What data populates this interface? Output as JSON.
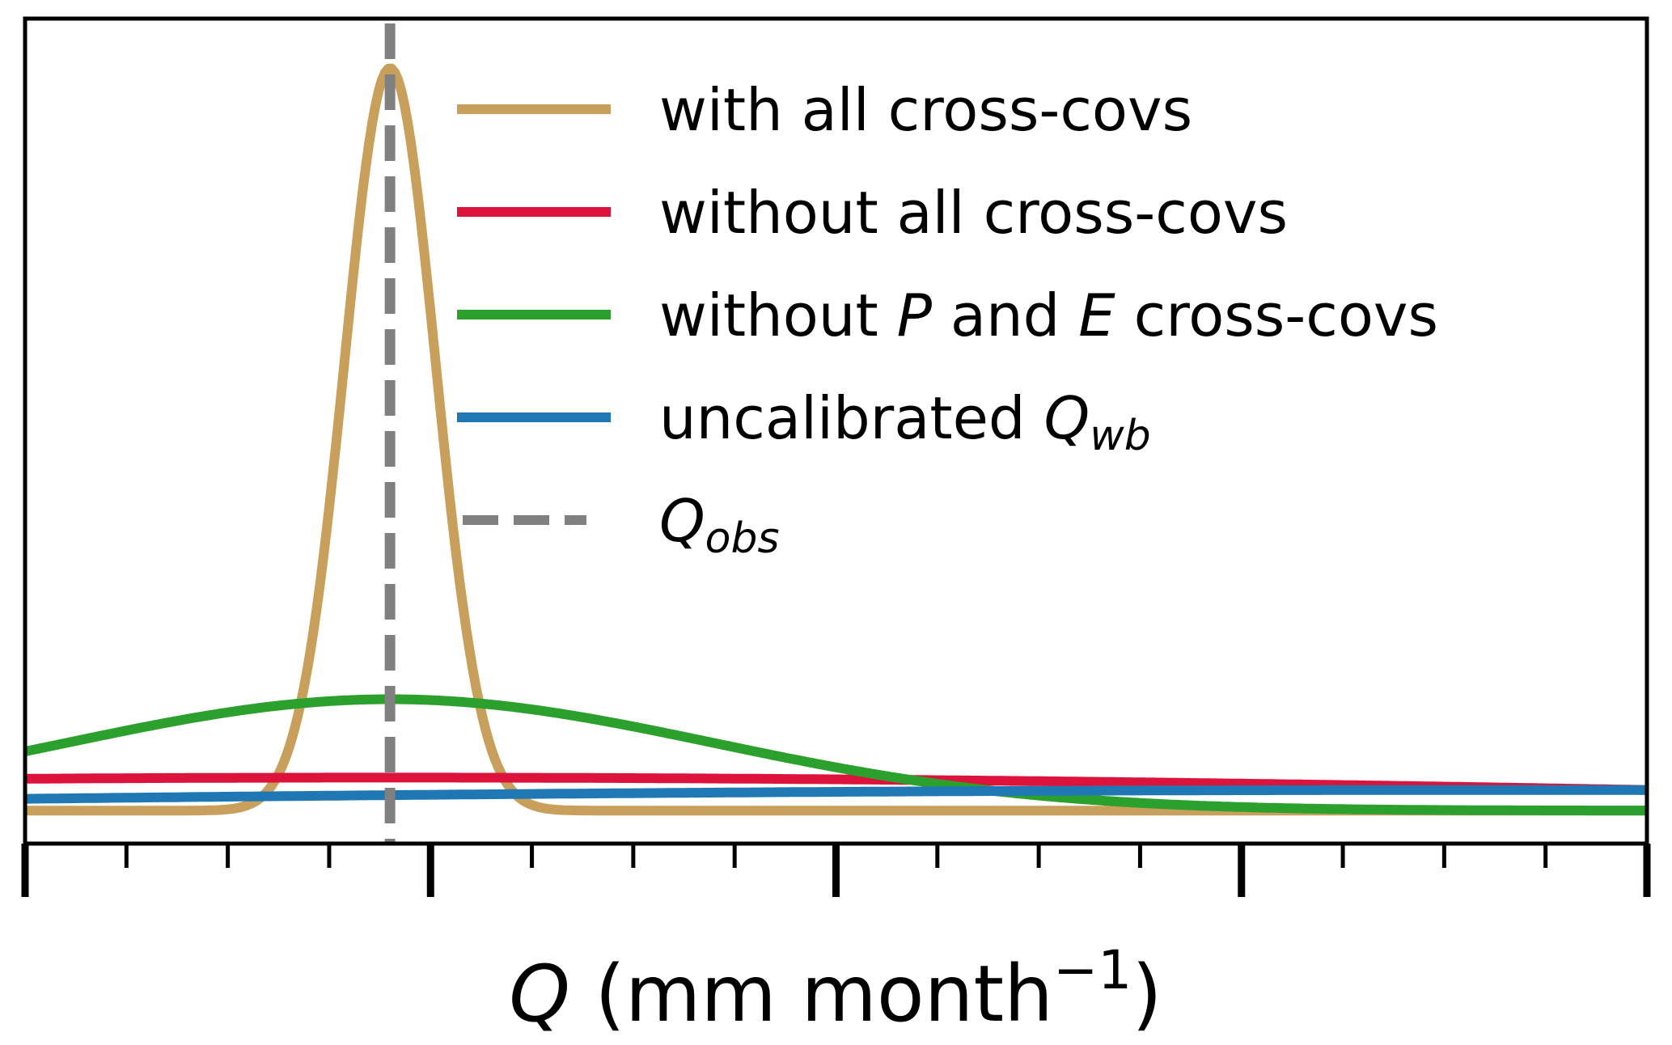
{
  "chart_data": {
    "type": "line",
    "title": "",
    "xlabel": {
      "symbol": "Q",
      "text": " (mm month",
      "superscript": "−1",
      "close": ")"
    },
    "ylabel": "",
    "x_ticks": {
      "major_count": 5,
      "minor_per_major": 4
    },
    "grid": false,
    "legend_placement": "top-right",
    "observed_marker": {
      "x": 0.225,
      "color": "#808080"
    },
    "series": [
      {
        "key": "with",
        "label": {
          "parts": [
            {
              "text": "with all cross-covs"
            }
          ]
        },
        "color": "#c8a05c",
        "style": "solid",
        "peak_x": 0.225,
        "peak_y": 0.94,
        "sigma": 0.028,
        "baseline": 0.04
      },
      {
        "key": "without_all",
        "label": {
          "parts": [
            {
              "text": "without all cross-covs"
            }
          ]
        },
        "color": "#dc143c",
        "style": "solid",
        "peak_x": 0.225,
        "peak_y": 0.08,
        "sigma": 1.2,
        "baseline": 0.0
      },
      {
        "key": "without_pe",
        "label": {
          "parts": [
            {
              "text": "without "
            },
            {
              "text": "P",
              "italic": true
            },
            {
              "text": " and "
            },
            {
              "text": "E",
              "italic": true
            },
            {
              "text": " cross-covs"
            }
          ]
        },
        "color": "#2ca02c",
        "style": "solid",
        "peak_x": 0.225,
        "peak_y": 0.175,
        "sigma": 0.2,
        "baseline": 0.04
      },
      {
        "key": "uncalibrated",
        "label": {
          "parts": [
            {
              "text": "uncalibrated "
            },
            {
              "text": "Q",
              "italic": true
            },
            {
              "text": "wb",
              "italic": true,
              "sub": true
            }
          ]
        },
        "color": "#1f77b4",
        "style": "solid",
        "peak_x": 0.9,
        "peak_y": 0.065,
        "sigma": 1.5,
        "baseline": 0.0
      },
      {
        "key": "obs",
        "label": {
          "parts": [
            {
              "text": "Q",
              "italic": true
            },
            {
              "text": "obs",
              "italic": true,
              "sub": true
            }
          ]
        },
        "color": "#808080",
        "style": "dashed"
      }
    ]
  }
}
